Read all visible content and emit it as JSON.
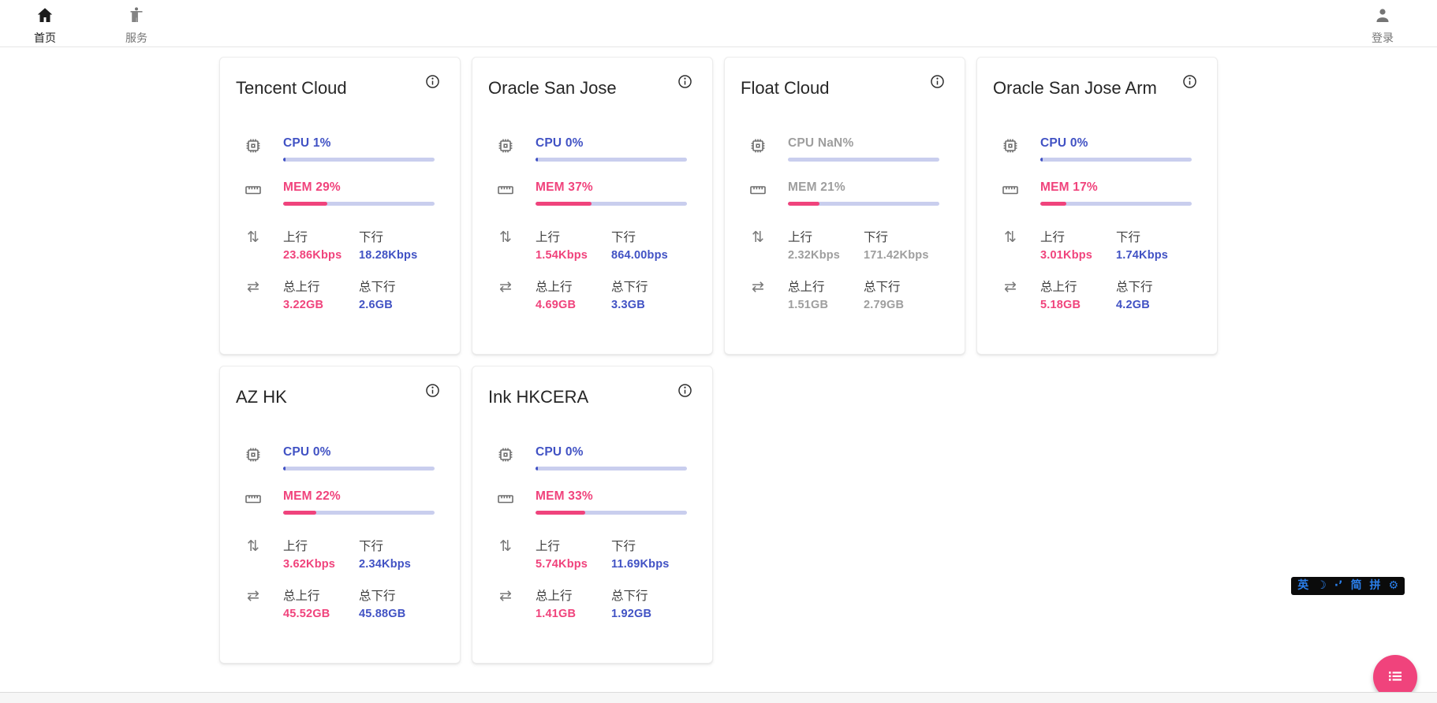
{
  "nav": {
    "items": [
      {
        "label": "首页",
        "icon": "home-icon",
        "active": true
      },
      {
        "label": "服务",
        "icon": "services-icon",
        "active": false
      }
    ],
    "login": {
      "label": "登录",
      "icon": "person-icon"
    }
  },
  "labels": {
    "upload": "上行",
    "download": "下行",
    "total_upload": "总上行",
    "total_download": "总下行"
  },
  "servers": [
    {
      "name": "Tencent Cloud",
      "cpu_label": "CPU 1%",
      "cpu_percent": 1,
      "mem_label": "MEM 29%",
      "mem_percent": 29,
      "up_speed": "23.86Kbps",
      "down_speed": "18.28Kbps",
      "total_up": "3.22GB",
      "total_down": "2.6GB",
      "offline": false
    },
    {
      "name": "Oracle San Jose",
      "cpu_label": "CPU 0%",
      "cpu_percent": 0,
      "mem_label": "MEM 37%",
      "mem_percent": 37,
      "up_speed": "1.54Kbps",
      "down_speed": "864.00bps",
      "total_up": "4.69GB",
      "total_down": "3.3GB",
      "offline": false
    },
    {
      "name": "Float Cloud",
      "cpu_label": "CPU NaN%",
      "cpu_percent": null,
      "mem_label": "MEM 21%",
      "mem_percent": 21,
      "up_speed": "2.32Kbps",
      "down_speed": "171.42Kbps",
      "total_up": "1.51GB",
      "total_down": "2.79GB",
      "offline": true
    },
    {
      "name": "Oracle San Jose Arm",
      "cpu_label": "CPU 0%",
      "cpu_percent": 0,
      "mem_label": "MEM 17%",
      "mem_percent": 17,
      "up_speed": "3.01Kbps",
      "down_speed": "1.74Kbps",
      "total_up": "5.18GB",
      "total_down": "4.2GB",
      "offline": false
    },
    {
      "name": "AZ HK",
      "cpu_label": "CPU 0%",
      "cpu_percent": 0,
      "mem_label": "MEM 22%",
      "mem_percent": 22,
      "up_speed": "3.62Kbps",
      "down_speed": "2.34Kbps",
      "total_up": "45.52GB",
      "total_down": "45.88GB",
      "offline": false
    },
    {
      "name": "Ink HKCERA",
      "cpu_label": "CPU 0%",
      "cpu_percent": 0,
      "mem_label": "MEM 33%",
      "mem_percent": 33,
      "up_speed": "5.74Kbps",
      "down_speed": "11.69Kbps",
      "total_up": "1.41GB",
      "total_down": "1.92GB",
      "offline": false
    }
  ],
  "ime_toolbar": {
    "items": [
      {
        "glyph": "英",
        "name": "ime-language-toggle"
      },
      {
        "glyph": "☽",
        "name": "ime-moon-icon"
      },
      {
        "glyph": "·’",
        "name": "ime-punctuation-toggle"
      },
      {
        "glyph": "简",
        "name": "ime-simplified-toggle"
      },
      {
        "glyph": "拼",
        "name": "ime-pinyin-toggle"
      },
      {
        "glyph": "⚙",
        "name": "ime-settings-icon"
      }
    ]
  },
  "colors": {
    "blue": "#4152c4",
    "pink": "#f0437c",
    "track": "#c9ceee"
  }
}
